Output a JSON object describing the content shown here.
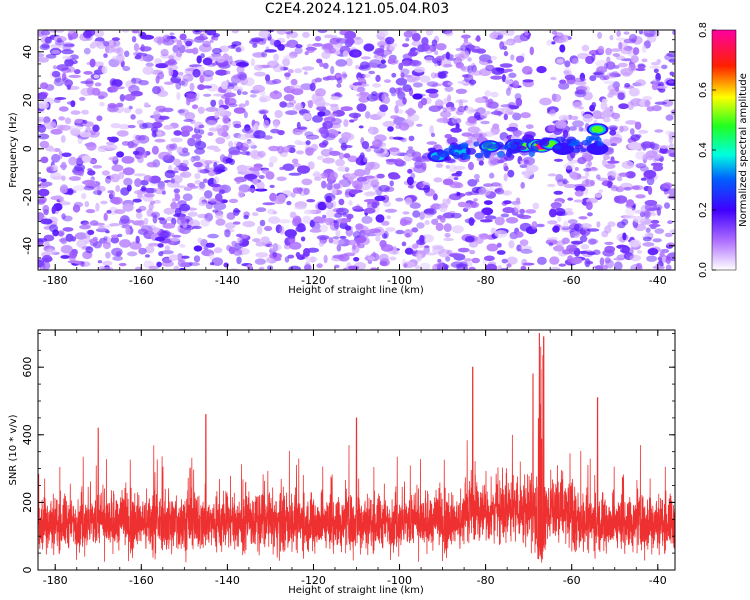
{
  "title": "C2E4.2024.121.05.04.R03",
  "chart_data": [
    {
      "type": "heatmap",
      "xlabel": "Height of straight line (km)",
      "ylabel": "Frequency (Hz)",
      "xlim": [
        -184,
        -36
      ],
      "ylim": [
        -50,
        49
      ],
      "x_ticks": [
        -180,
        -160,
        -140,
        -120,
        -100,
        -80,
        -60,
        -40
      ],
      "y_ticks": [
        -40,
        -20,
        0,
        20,
        40
      ],
      "colorbar": {
        "label": "Normalized spectral amplitude",
        "range": [
          0.0,
          0.8
        ],
        "ticks": [
          "0.0",
          "0.2",
          "0.4",
          "0.6",
          "0.8"
        ],
        "colormap": "rainbow (purple-blue-cyan-green-yellow-red-magenta)"
      },
      "background_noise_level": 0.1,
      "features": [
        {
          "x": -91,
          "y": -3,
          "value": 0.45
        },
        {
          "x": -86,
          "y": -1,
          "value": 0.35
        },
        {
          "x": -79,
          "y": 1,
          "value": 0.5
        },
        {
          "x": -73,
          "y": 1.5,
          "value": 0.5
        },
        {
          "x": -71,
          "y": 1,
          "value": 0.55
        },
        {
          "x": -68,
          "y": 1.5,
          "value": 0.7
        },
        {
          "x": -67,
          "y": 1,
          "value": 0.8
        },
        {
          "x": -65,
          "y": 2,
          "value": 0.55
        },
        {
          "x": -62,
          "y": 0,
          "value": 0.3
        },
        {
          "x": -54,
          "y": 8,
          "value": 0.5
        },
        {
          "x": -54,
          "y": 0,
          "value": 0.3
        }
      ],
      "blank_band_x": [
        -68,
        -66
      ]
    },
    {
      "type": "line",
      "xlabel": "Height of straight line (km)",
      "ylabel": "SNR (10 * v/v)",
      "xlim": [
        -184,
        -36
      ],
      "ylim": [
        0,
        710
      ],
      "x_ticks": [
        -180,
        -160,
        -140,
        -120,
        -100,
        -80,
        -60,
        -40
      ],
      "y_ticks": [
        0,
        200,
        400,
        600
      ],
      "series_color": "#ee3030",
      "baseline_mean": 140,
      "baseline_spread": 60,
      "peaks": [
        {
          "x": -67.5,
          "y": 700
        },
        {
          "x": -66.5,
          "y": 690
        },
        {
          "x": -69,
          "y": 580
        },
        {
          "x": -83,
          "y": 600
        },
        {
          "x": -54,
          "y": 510
        },
        {
          "x": -145,
          "y": 460
        },
        {
          "x": -110,
          "y": 450
        },
        {
          "x": -170,
          "y": 420
        }
      ]
    }
  ]
}
